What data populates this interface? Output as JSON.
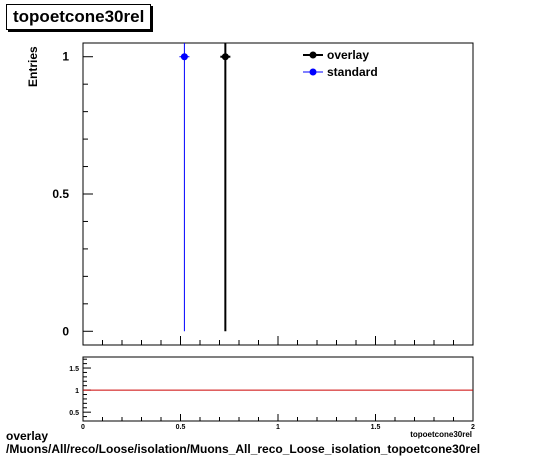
{
  "chart_data": [
    {
      "type": "scatter",
      "title": "topoetcone30rel",
      "ylabel": "Entries",
      "xlim": [
        0,
        2
      ],
      "ylim": [
        -0.05,
        1.05
      ],
      "yticks": [
        0,
        0.5,
        1
      ],
      "ytick_labels": [
        "0",
        "0.5",
        "1"
      ],
      "legend_position": "top-right",
      "series": [
        {
          "name": "overlay",
          "color": "#000000",
          "points": [
            {
              "x": 0.73,
              "y": 1,
              "yerr": 1
            }
          ]
        },
        {
          "name": "standard",
          "color": "#0000ff",
          "points": [
            {
              "x": 0.52,
              "y": 1,
              "yerr": 1
            }
          ]
        }
      ]
    },
    {
      "type": "line",
      "xlabel": "topoetcone30rel",
      "xlim": [
        0,
        2
      ],
      "ylim": [
        0.3,
        1.75
      ],
      "xticks": [
        0,
        0.5,
        1,
        1.5,
        2
      ],
      "xtick_labels": [
        "0",
        "0.5",
        "1",
        "1.5",
        "2"
      ],
      "yticks": [
        0.5,
        1,
        1.5
      ],
      "ytick_labels": [
        "0.5",
        "1",
        "1.5"
      ],
      "reference_line": {
        "y": 1,
        "color": "#cc0000"
      }
    }
  ],
  "footer": {
    "line1": "overlay",
    "line2": "/Muons/All/reco/Loose/isolation/Muons_All_reco_Loose_isolation_topoetcone30rel"
  }
}
